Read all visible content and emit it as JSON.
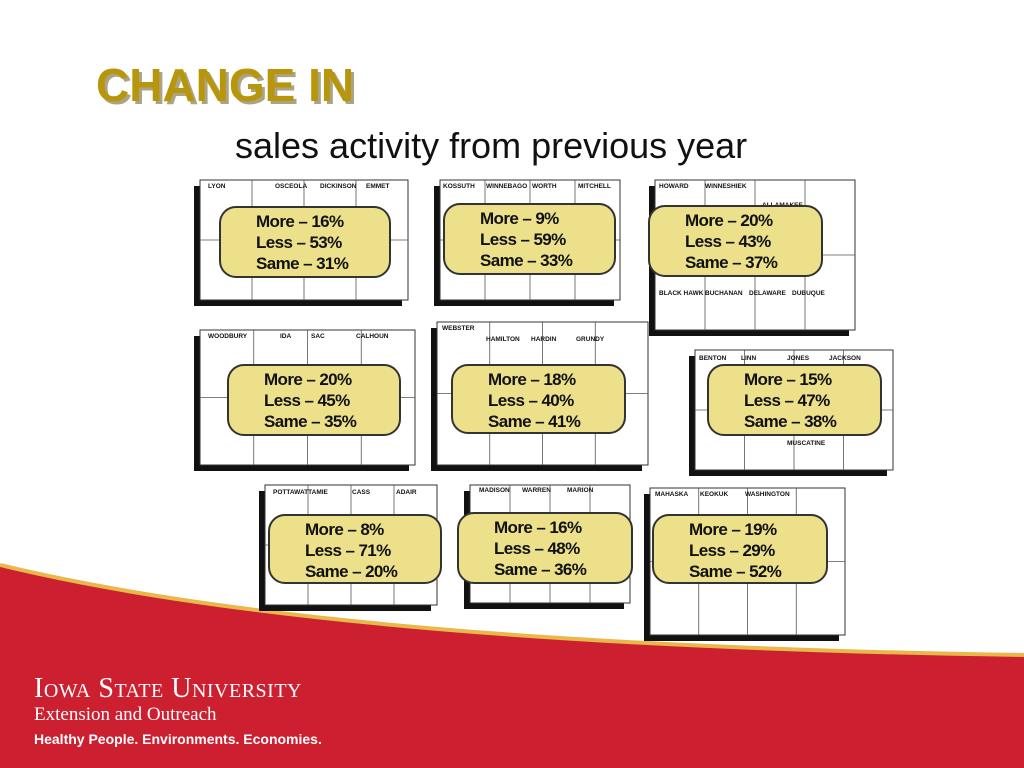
{
  "header": {
    "title": "CHANGE IN",
    "subtitle": "sales activity from previous year"
  },
  "regions": [
    {
      "counties": [
        "LYON",
        "OSCEOLA",
        "DICKINSON",
        "EMMET"
      ],
      "lines": [
        "More – 16%",
        "Less – 53%",
        "Same – 31%"
      ]
    },
    {
      "counties": [
        "KOSSUTH",
        "WINNEBAGO",
        "WORTH",
        "MITCHELL"
      ],
      "lines": [
        "More – 9%",
        "Less – 59%",
        "Same – 33%"
      ]
    },
    {
      "counties": [
        "HOWARD",
        "WINNESHIEK",
        "ALLAMAKEE",
        "BLACK HAWK",
        "BUCHANAN",
        "DELAWARE",
        "DUBUQUE"
      ],
      "lines": [
        "More – 20%",
        "Less – 43%",
        "Same – 37%"
      ]
    },
    {
      "counties": [
        "WOODBURY",
        "IDA",
        "SAC",
        "CALHOUN"
      ],
      "lines": [
        "More – 20%",
        "Less – 45%",
        "Same – 35%"
      ]
    },
    {
      "counties": [
        "WEBSTER",
        "HAMILTON",
        "HARDIN",
        "GRUNDY"
      ],
      "lines": [
        "More – 18%",
        "Less – 40%",
        "Same – 41%"
      ]
    },
    {
      "counties": [
        "BENTON",
        "LINN",
        "JONES",
        "JACKSON",
        "MUSCATINE"
      ],
      "lines": [
        "More – 15%",
        "Less – 47%",
        "Same – 38%"
      ]
    },
    {
      "counties": [
        "POTTAWATTAMIE",
        "CASS",
        "ADAIR"
      ],
      "lines": [
        "More – 8%",
        "Less – 71%",
        "Same – 20%"
      ]
    },
    {
      "counties": [
        "MADISON",
        "WARREN",
        "MARION"
      ],
      "lines": [
        "More – 16%",
        "Less – 48%",
        "Same – 36%"
      ]
    },
    {
      "counties": [
        "MAHASKA",
        "KEOKUK",
        "WASHINGTON"
      ],
      "lines": [
        "More – 19%",
        "Less – 29%",
        "Same – 52%"
      ]
    }
  ],
  "footer": {
    "university": "Iowa State University",
    "unit": "Extension and Outreach",
    "tagline": "Healthy People. Environments. Economies."
  }
}
